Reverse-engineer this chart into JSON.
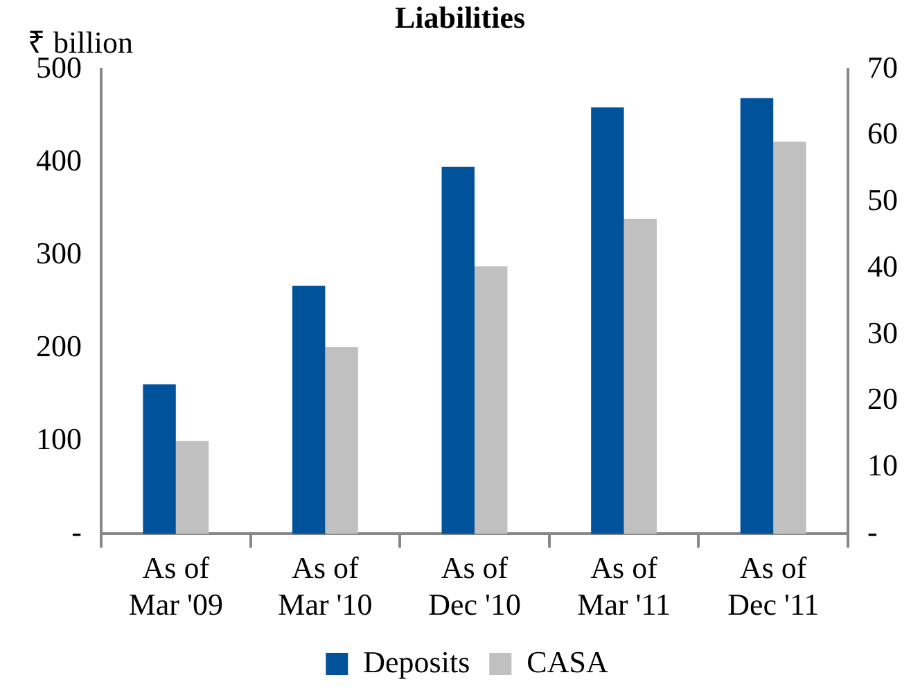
{
  "chart_data": {
    "type": "bar",
    "title": "Liabilities",
    "ylabel": "₹ billion",
    "categories": [
      "As of\nMar '09",
      "As of\nMar '10",
      "As of\nDec '10",
      "As of\nMar '11",
      "As of\nDec '11"
    ],
    "series": [
      {
        "name": "Deposits",
        "color": "#00529b",
        "values": [
          161,
          267,
          395,
          459,
          469
        ]
      },
      {
        "name": "CASA",
        "color": "#c0c0c0",
        "values": [
          100,
          201,
          288,
          339,
          422
        ]
      }
    ],
    "ylim": [
      0,
      500
    ],
    "yticks": [
      {
        "value": 0,
        "label": "-"
      },
      100,
      200,
      300,
      400,
      500
    ],
    "y2lim": [
      0,
      70
    ],
    "y2ticks": [
      {
        "value": 0,
        "label": "-"
      },
      10,
      20,
      30,
      40,
      50,
      60,
      70
    ],
    "grid": false,
    "legend": "bottom"
  }
}
